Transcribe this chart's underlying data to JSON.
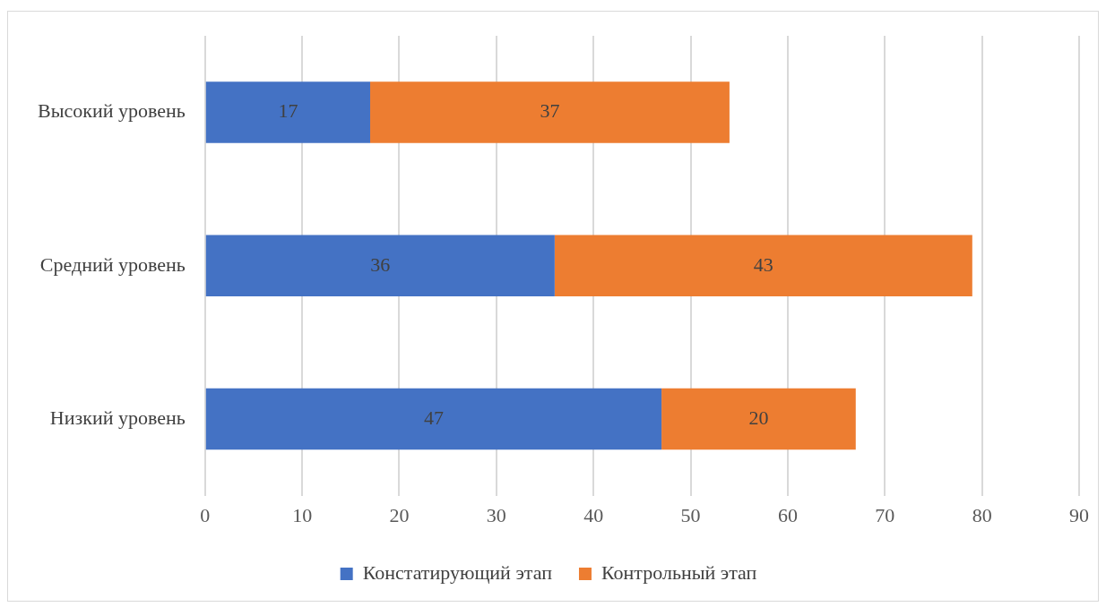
{
  "chart_data": {
    "type": "bar",
    "orientation": "horizontal",
    "stacked": true,
    "categories": [
      "Высокий уровень",
      "Средний уровень",
      "Низкий уровень"
    ],
    "series": [
      {
        "name": "Констатирующий этап",
        "color": "#4472c4",
        "values": [
          17,
          36,
          47
        ]
      },
      {
        "name": "Контрольный этап",
        "color": "#ed7d31",
        "values": [
          37,
          43,
          20
        ]
      }
    ],
    "xlim": [
      0,
      90
    ],
    "xticks": [
      0,
      10,
      20,
      30,
      40,
      50,
      60,
      70,
      80,
      90
    ],
    "grid": "x",
    "legend": "bottom",
    "data_labels": true
  }
}
